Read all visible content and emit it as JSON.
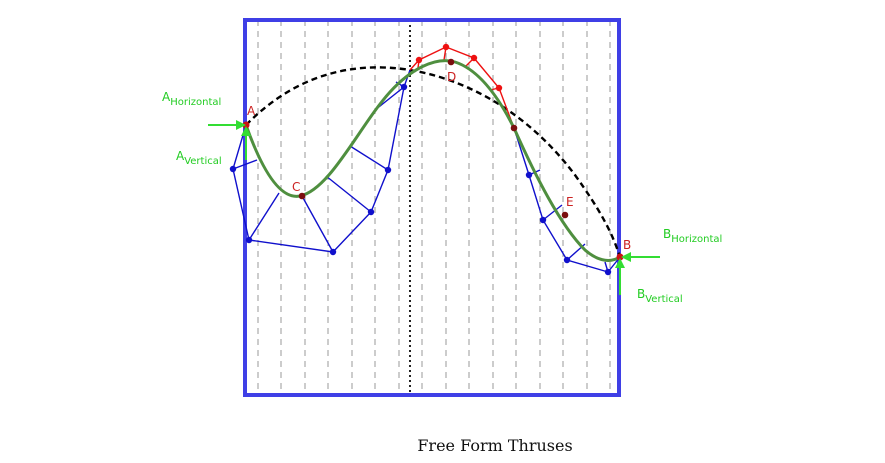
{
  "caption": "Free Form Thruses",
  "points": {
    "A": "A",
    "B": "B",
    "C": "C",
    "D": "D",
    "E": "E"
  },
  "forces": {
    "a_horizontal": {
      "main": "A",
      "sub": "Horizontal"
    },
    "a_vertical": {
      "main": "A",
      "sub": "Vertical"
    },
    "b_horizontal": {
      "main": "B",
      "sub": "Horizontal"
    },
    "b_vertical": {
      "main": "B",
      "sub": "Vertical"
    }
  },
  "colors": {
    "frame": "#3f3fe6",
    "truss_lower": "#1010cc",
    "truss_upper": "#ee1111",
    "arch_curve": "#4f8f3f",
    "funicular": "#000000",
    "force_arrow": "#33dd33",
    "grid": "#999999"
  }
}
